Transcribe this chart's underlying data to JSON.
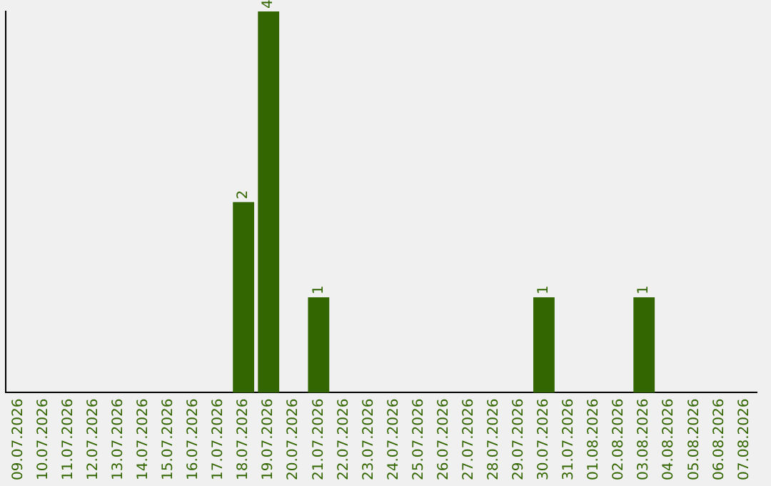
{
  "chart_data": {
    "type": "bar",
    "categories": [
      "09.07.2026",
      "10.07.2026",
      "11.07.2026",
      "12.07.2026",
      "13.07.2026",
      "14.07.2026",
      "15.07.2026",
      "16.07.2026",
      "17.07.2026",
      "18.07.2026",
      "19.07.2026",
      "20.07.2026",
      "21.07.2026",
      "22.07.2026",
      "23.07.2026",
      "24.07.2026",
      "25.07.2026",
      "26.07.2026",
      "27.07.2026",
      "28.07.2026",
      "29.07.2026",
      "30.07.2026",
      "31.07.2026",
      "01.08.2026",
      "02.08.2026",
      "03.08.2026",
      "04.08.2026",
      "05.08.2026",
      "06.08.2026",
      "07.08.2026"
    ],
    "values": [
      0,
      0,
      0,
      0,
      0,
      0,
      0,
      0,
      0,
      2,
      4,
      0,
      1,
      0,
      0,
      0,
      0,
      0,
      0,
      0,
      0,
      1,
      0,
      0,
      0,
      1,
      0,
      0,
      0,
      0
    ],
    "value_labels": [
      null,
      null,
      null,
      null,
      null,
      null,
      null,
      null,
      null,
      "2",
      "4",
      null,
      "1",
      null,
      null,
      null,
      null,
      null,
      null,
      null,
      null,
      "1",
      null,
      null,
      null,
      "1",
      null,
      null,
      null,
      null
    ],
    "color": "#336600",
    "grid": false,
    "legend": false,
    "tick_labels": "x"
  }
}
